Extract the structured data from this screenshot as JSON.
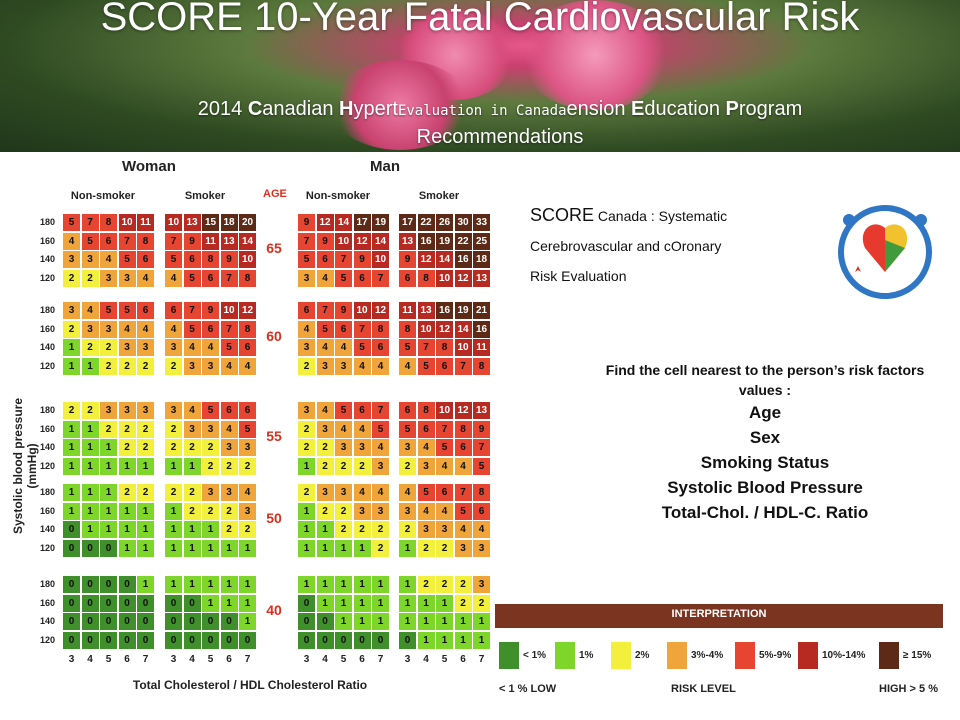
{
  "header": {
    "title": "SCORE 10-Year Fatal Cardiovascular Risk",
    "subtitle_line1_pre": "2014 ",
    "subtitle_line1_mid": "anadian ",
    "subtitle_overlay": "Evaluation in Canada",
    "subtitle_line1_rest": "ension ",
    "subtitle_line2": "Recommendations"
  },
  "chart": {
    "woman_label": "Woman",
    "man_label": "Man",
    "nonsmoker_label": "Non-smoker",
    "smoker_label": "Smoker",
    "age_header": "AGE",
    "y_axis_label": "Systolic blood pressure (mmHg)",
    "x_axis_label": "Total Cholesterol / HDL Cholesterol Ratio",
    "bp_values": [
      "180",
      "160",
      "140",
      "120"
    ],
    "ratio_values": [
      "3",
      "4",
      "5",
      "6",
      "7"
    ],
    "ages": [
      "65",
      "60",
      "55",
      "50",
      "40"
    ],
    "blocks": [
      {
        "age": "65",
        "wn": [
          [
            5,
            7,
            8,
            10,
            11
          ],
          [
            4,
            5,
            6,
            7,
            8
          ],
          [
            3,
            3,
            4,
            5,
            6
          ],
          [
            2,
            2,
            3,
            3,
            4
          ]
        ],
        "ws": [
          [
            10,
            13,
            15,
            18,
            20
          ],
          [
            7,
            9,
            11,
            13,
            14
          ],
          [
            5,
            6,
            8,
            9,
            10
          ],
          [
            4,
            5,
            6,
            7,
            8
          ]
        ],
        "mn": [
          [
            9,
            12,
            14,
            17,
            19
          ],
          [
            7,
            9,
            10,
            12,
            14
          ],
          [
            5,
            6,
            7,
            9,
            10
          ],
          [
            3,
            4,
            5,
            6,
            7
          ]
        ],
        "ms": [
          [
            17,
            22,
            26,
            30,
            33
          ],
          [
            13,
            16,
            19,
            22,
            25
          ],
          [
            9,
            12,
            14,
            16,
            18
          ],
          [
            6,
            8,
            10,
            12,
            13
          ]
        ]
      },
      {
        "age": "60",
        "wn": [
          [
            3,
            4,
            5,
            5,
            6
          ],
          [
            2,
            3,
            3,
            4,
            4
          ],
          [
            1,
            2,
            2,
            3,
            3
          ],
          [
            1,
            1,
            2,
            2,
            2
          ]
        ],
        "ws": [
          [
            6,
            7,
            9,
            10,
            12
          ],
          [
            4,
            5,
            6,
            7,
            8
          ],
          [
            3,
            4,
            4,
            5,
            6
          ],
          [
            2,
            3,
            3,
            4,
            4
          ]
        ],
        "mn": [
          [
            6,
            7,
            9,
            10,
            12
          ],
          [
            4,
            5,
            6,
            7,
            8
          ],
          [
            3,
            4,
            4,
            5,
            6
          ],
          [
            2,
            3,
            3,
            4,
            4
          ]
        ],
        "ms": [
          [
            11,
            13,
            16,
            19,
            21
          ],
          [
            8,
            10,
            12,
            14,
            16
          ],
          [
            5,
            7,
            8,
            10,
            11
          ],
          [
            4,
            5,
            6,
            7,
            8
          ]
        ]
      },
      {
        "age": "55",
        "wn": [
          [
            2,
            2,
            3,
            3,
            3
          ],
          [
            1,
            1,
            2,
            2,
            2
          ],
          [
            1,
            1,
            1,
            2,
            2
          ],
          [
            1,
            1,
            1,
            1,
            1
          ]
        ],
        "ws": [
          [
            3,
            4,
            5,
            6,
            6
          ],
          [
            2,
            3,
            3,
            4,
            5
          ],
          [
            2,
            2,
            2,
            3,
            3
          ],
          [
            1,
            1,
            2,
            2,
            2
          ]
        ],
        "mn": [
          [
            3,
            4,
            5,
            6,
            7
          ],
          [
            2,
            3,
            4,
            4,
            5
          ],
          [
            2,
            2,
            3,
            3,
            4
          ],
          [
            1,
            2,
            2,
            2,
            3
          ]
        ],
        "ms": [
          [
            6,
            8,
            10,
            12,
            13
          ],
          [
            5,
            6,
            7,
            8,
            9
          ],
          [
            3,
            4,
            5,
            6,
            7
          ],
          [
            2,
            3,
            4,
            4,
            5
          ]
        ]
      },
      {
        "age": "50",
        "wn": [
          [
            1,
            1,
            1,
            2,
            2
          ],
          [
            1,
            1,
            1,
            1,
            1
          ],
          [
            0,
            1,
            1,
            1,
            1
          ],
          [
            0,
            0,
            0,
            1,
            1
          ]
        ],
        "ws": [
          [
            2,
            2,
            3,
            3,
            4
          ],
          [
            1,
            2,
            2,
            2,
            3
          ],
          [
            1,
            1,
            1,
            2,
            2
          ],
          [
            1,
            1,
            1,
            1,
            1
          ]
        ],
        "mn": [
          [
            2,
            3,
            3,
            4,
            4
          ],
          [
            1,
            2,
            2,
            3,
            3
          ],
          [
            1,
            1,
            2,
            2,
            2
          ],
          [
            1,
            1,
            1,
            1,
            2
          ]
        ],
        "ms": [
          [
            4,
            5,
            6,
            7,
            8
          ],
          [
            3,
            4,
            4,
            5,
            6
          ],
          [
            2,
            3,
            3,
            4,
            4
          ],
          [
            1,
            2,
            2,
            3,
            3
          ]
        ]
      },
      {
        "age": "40",
        "wn": [
          [
            0,
            0,
            0,
            0,
            1
          ],
          [
            0,
            0,
            0,
            0,
            0
          ],
          [
            0,
            0,
            0,
            0,
            0
          ],
          [
            0,
            0,
            0,
            0,
            0
          ]
        ],
        "ws": [
          [
            1,
            1,
            1,
            1,
            1
          ],
          [
            0,
            0,
            1,
            1,
            1
          ],
          [
            0,
            0,
            0,
            0,
            1
          ],
          [
            0,
            0,
            0,
            0,
            0
          ]
        ],
        "mn": [
          [
            1,
            1,
            1,
            1,
            1
          ],
          [
            0,
            1,
            1,
            1,
            1
          ],
          [
            0,
            0,
            1,
            1,
            1
          ],
          [
            0,
            0,
            0,
            0,
            0
          ]
        ],
        "ms": [
          [
            1,
            2,
            2,
            2,
            3
          ],
          [
            1,
            1,
            1,
            2,
            2
          ],
          [
            1,
            1,
            1,
            1,
            1
          ],
          [
            0,
            1,
            1,
            1,
            1
          ]
        ]
      }
    ]
  },
  "score_desc": {
    "big": "SCORE",
    "line1": "Canada : Systematic",
    "line2": "Cerebrovascular and cOronary",
    "line3": "Risk Evaluation"
  },
  "instructions": {
    "intro": "Find the cell nearest to the person’s risk factors values :",
    "items": [
      "Age",
      "Sex",
      "Smoking Status",
      "Systolic Blood Pressure",
      "Total-Chol. / HDL-C. Ratio"
    ]
  },
  "legend": {
    "title": "INTERPRETATION",
    "entries": [
      {
        "label": "< 1%",
        "color": "#3f8f2a"
      },
      {
        "label": "1%",
        "color": "#7fd62b"
      },
      {
        "label": "2%",
        "color": "#f2f03c"
      },
      {
        "label": "3%-4%",
        "color": "#f0a53a"
      },
      {
        "label": "5%-9%",
        "color": "#e64532"
      },
      {
        "label": "10%-14%",
        "color": "#b62a21"
      },
      {
        "label": "≥ 15%",
        "color": "#5c2a16"
      }
    ],
    "low": "< 1 % LOW",
    "risk_level": "RISK LEVEL",
    "high": "HIGH > 5 %"
  },
  "colors": {
    "r0": "#3f8f2a",
    "r1": "#7fd62b",
    "r2": "#f2f03c",
    "r34": "#f0a53a",
    "r59": "#e64532",
    "r1014": "#b62a21",
    "r15": "#5c2a16",
    "age_red": "#d7301f"
  }
}
